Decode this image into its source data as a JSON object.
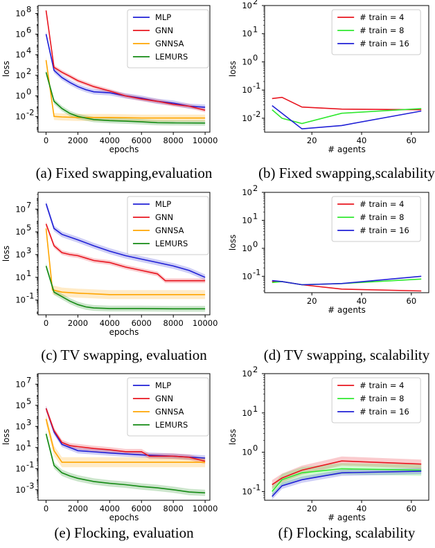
{
  "colors": {
    "MLP": "#1f1fd6",
    "GNN": "#e8141e",
    "GNNSA": "#ffa500",
    "LEMURS": "#138a13",
    "train4": "#e8141e",
    "train8": "#2ee82e",
    "train16": "#1f1fd6"
  },
  "chart_data": [
    {
      "id": "a",
      "type": "line",
      "caption": "(a) Fixed swapping,evaluation",
      "xlabel": "epochs",
      "ylabel": "loss",
      "ylog": true,
      "xlim": [
        -500,
        10300
      ],
      "ylim": [
        0.0003,
        600000000
      ],
      "xticks": [
        0,
        2000,
        4000,
        6000,
        8000,
        10000
      ],
      "yticks": [
        {
          "v": 0.01,
          "label": "10",
          "exp": "-2"
        },
        {
          "v": 1,
          "label": "10",
          "exp": "0"
        },
        {
          "v": 100,
          "label": "10",
          "exp": "2"
        },
        {
          "v": 10000,
          "label": "10",
          "exp": "4"
        },
        {
          "v": 1000000,
          "label": "10",
          "exp": "6"
        },
        {
          "v": 100000000,
          "label": "10",
          "exp": "8"
        }
      ],
      "legend": "top-right",
      "series": [
        {
          "name": "MLP",
          "color": "MLP",
          "x": [
            0,
            500,
            1000,
            1500,
            2000,
            2500,
            3000,
            4000,
            5000,
            6000,
            7000,
            8000,
            9000,
            10000
          ],
          "y": [
            1000000,
            300,
            60,
            20,
            8,
            4,
            2.5,
            2,
            1,
            0.6,
            0.3,
            0.2,
            0.1,
            0.08
          ],
          "band": 1.8
        },
        {
          "name": "GNN",
          "color": "GNN",
          "x": [
            0,
            500,
            1000,
            1500,
            2000,
            3000,
            4000,
            5000,
            6000,
            7000,
            8000,
            9000,
            10000
          ],
          "y": [
            200000000,
            600,
            200,
            80,
            30,
            8,
            3,
            1,
            0.5,
            0.3,
            0.15,
            0.1,
            0.04
          ],
          "band": 1.6
        },
        {
          "name": "GNNSA",
          "color": "GNNSA",
          "x": [
            0,
            500,
            1000,
            2000,
            4000,
            6000,
            8000,
            10000
          ],
          "y": [
            3000,
            0.01,
            0.009,
            0.008,
            0.008,
            0.007,
            0.007,
            0.007
          ],
          "band": 2.2
        },
        {
          "name": "LEMURS",
          "color": "LEMURS",
          "x": [
            0,
            500,
            1000,
            1500,
            2000,
            2500,
            3000,
            4000,
            5000,
            6000,
            7000,
            8000,
            10000
          ],
          "y": [
            200,
            0.3,
            0.06,
            0.02,
            0.01,
            0.007,
            0.005,
            0.004,
            0.0035,
            0.003,
            0.0025,
            0.0024,
            0.0023
          ],
          "band": 1.8
        }
      ]
    },
    {
      "id": "b",
      "type": "line",
      "caption": "(b) Fixed swapping,scalability",
      "xlabel": "# agents",
      "ylabel": "loss",
      "ylog": true,
      "xlim": [
        1,
        67
      ],
      "ylim": [
        0.0032,
        100
      ],
      "xticks": [
        20,
        40,
        60
      ],
      "yticks": [
        {
          "v": 0.01,
          "label": "10",
          "exp": "-2"
        },
        {
          "v": 0.1,
          "label": "10",
          "exp": "-1"
        },
        {
          "v": 1,
          "label": "10",
          "exp": "0"
        },
        {
          "v": 10,
          "label": "10",
          "exp": "1"
        },
        {
          "v": 100,
          "label": "10",
          "exp": "2"
        }
      ],
      "legend": "top-right",
      "series": [
        {
          "name": "# train = 4",
          "color": "train4",
          "x": [
            4,
            8,
            16,
            32,
            64
          ],
          "y": [
            0.05,
            0.055,
            0.025,
            0.021,
            0.02
          ]
        },
        {
          "name": "# train = 8",
          "color": "train8",
          "x": [
            4,
            8,
            16,
            32,
            64
          ],
          "y": [
            0.02,
            0.01,
            0.0065,
            0.015,
            0.022
          ]
        },
        {
          "name": "# train = 16",
          "color": "train16",
          "x": [
            4,
            8,
            16,
            32,
            64
          ],
          "y": [
            0.028,
            0.015,
            0.0042,
            0.0055,
            0.018
          ]
        }
      ]
    },
    {
      "id": "c",
      "type": "line",
      "caption": "(c) TV swapping, evaluation",
      "xlabel": "epochs",
      "ylabel": "loss",
      "ylog": true,
      "xlim": [
        -500,
        10300
      ],
      "ylim": [
        0.005,
        300000000
      ],
      "xticks": [
        0,
        2000,
        4000,
        6000,
        8000,
        10000
      ],
      "yticks": [
        {
          "v": 0.1,
          "label": "10",
          "exp": "-1"
        },
        {
          "v": 10,
          "label": "10",
          "exp": "1"
        },
        {
          "v": 1000,
          "label": "10",
          "exp": "3"
        },
        {
          "v": 100000,
          "label": "10",
          "exp": "5"
        },
        {
          "v": 10000000,
          "label": "10",
          "exp": "7"
        }
      ],
      "legend": "top-right",
      "series": [
        {
          "name": "MLP",
          "color": "MLP",
          "x": [
            0,
            500,
            1000,
            2000,
            3000,
            4000,
            5000,
            6000,
            7000,
            8000,
            9000,
            10000
          ],
          "y": [
            30000000,
            200000,
            60000,
            20000,
            6000,
            2000,
            800,
            400,
            200,
            100,
            40,
            10
          ],
          "band": 1.8
        },
        {
          "name": "GNN",
          "color": "GNN",
          "x": [
            0,
            500,
            1000,
            1500,
            2000,
            3000,
            4000,
            5000,
            6000,
            7000,
            7500,
            8000,
            10000
          ],
          "y": [
            500000,
            6000,
            1500,
            1000,
            800,
            300,
            200,
            80,
            40,
            20,
            5,
            5,
            5
          ],
          "band": 1.6
        },
        {
          "name": "GNNSA",
          "color": "GNNSA",
          "x": [
            0,
            400,
            1000,
            2000,
            3000,
            4000,
            6000,
            8000,
            10000
          ],
          "y": [
            200000,
            0.8,
            0.5,
            0.4,
            0.35,
            0.3,
            0.3,
            0.3,
            0.3
          ],
          "band": 2.5
        },
        {
          "name": "LEMURS",
          "color": "LEMURS",
          "x": [
            0,
            500,
            1000,
            1500,
            2000,
            2500,
            3000,
            4000,
            6000,
            8000,
            10000
          ],
          "y": [
            100,
            0.5,
            0.2,
            0.08,
            0.04,
            0.025,
            0.02,
            0.018,
            0.018,
            0.017,
            0.017
          ],
          "band": 1.8
        }
      ]
    },
    {
      "id": "d",
      "type": "line",
      "caption": "(d) TV swapping, scalability",
      "xlabel": "# agents",
      "ylabel": "loss",
      "ylog": true,
      "xlim": [
        1,
        67
      ],
      "ylim": [
        0.026,
        100
      ],
      "xticks": [
        20,
        40,
        60
      ],
      "yticks": [
        {
          "v": 0.1,
          "label": "10",
          "exp": "-1"
        },
        {
          "v": 1,
          "label": "10",
          "exp": "0"
        },
        {
          "v": 10,
          "label": "10",
          "exp": "1"
        },
        {
          "v": 100,
          "label": "10",
          "exp": "2"
        }
      ],
      "legend": "top-right",
      "series": [
        {
          "name": "# train = 4",
          "color": "train4",
          "x": [
            4,
            8,
            16,
            32,
            64
          ],
          "y": [
            0.065,
            0.065,
            0.05,
            0.035,
            0.03
          ]
        },
        {
          "name": "# train = 8",
          "color": "train8",
          "x": [
            4,
            8,
            16,
            32,
            64
          ],
          "y": [
            0.06,
            0.065,
            0.05,
            0.055,
            0.08
          ]
        },
        {
          "name": "# train = 16",
          "color": "train16",
          "x": [
            4,
            8,
            16,
            32,
            64
          ],
          "y": [
            0.07,
            0.065,
            0.05,
            0.055,
            0.1
          ]
        }
      ]
    },
    {
      "id": "e",
      "type": "line",
      "caption": "(e) Flocking, evaluation",
      "xlabel": "epochs",
      "ylabel": "loss",
      "ylog": true,
      "xlim": [
        -500,
        10300
      ],
      "ylim": [
        0.0001,
        100000000
      ],
      "xticks": [
        0,
        2000,
        4000,
        6000,
        8000,
        10000
      ],
      "yticks": [
        {
          "v": 0.001,
          "label": "10",
          "exp": "-3"
        },
        {
          "v": 0.1,
          "label": "10",
          "exp": "-1"
        },
        {
          "v": 10,
          "label": "10",
          "exp": "1"
        },
        {
          "v": 1000,
          "label": "10",
          "exp": "3"
        },
        {
          "v": 100000,
          "label": "10",
          "exp": "5"
        },
        {
          "v": 10000000,
          "label": "10",
          "exp": "7"
        }
      ],
      "legend": "top-right",
      "series": [
        {
          "name": "MLP",
          "color": "MLP",
          "x": [
            0,
            500,
            1000,
            2000,
            4000,
            6000,
            8000,
            10000
          ],
          "y": [
            50000,
            300,
            20,
            5,
            3,
            2,
            1.5,
            1
          ],
          "band": 1.8
        },
        {
          "name": "GNN",
          "color": "GNN",
          "x": [
            0,
            500,
            1000,
            1500,
            2000,
            3000,
            4000,
            5000,
            6000,
            6500,
            7000,
            8000,
            9000,
            10000
          ],
          "y": [
            50000,
            400,
            30,
            15,
            12,
            8,
            6,
            4,
            4,
            1.5,
            1.5,
            1.5,
            1.2,
            0.5
          ],
          "band": 1.8
        },
        {
          "name": "GNNSA",
          "color": "GNNSA",
          "x": [
            0,
            500,
            1000,
            2000,
            4000,
            6000,
            8000,
            10000
          ],
          "y": [
            5000,
            5,
            0.4,
            0.4,
            0.4,
            0.4,
            0.4,
            0.4
          ],
          "band": 3
        },
        {
          "name": "LEMURS",
          "color": "LEMURS",
          "x": [
            0,
            500,
            1000,
            1500,
            2000,
            3000,
            4000,
            5000,
            6000,
            7000,
            8000,
            9000,
            10000
          ],
          "y": [
            200,
            0.2,
            0.04,
            0.02,
            0.012,
            0.006,
            0.004,
            0.003,
            0.002,
            0.0015,
            0.001,
            0.0006,
            0.0005
          ],
          "band": 2
        }
      ]
    },
    {
      "id": "f",
      "type": "line",
      "caption": "(f) Flocking, scalability",
      "xlabel": "# agents",
      "ylabel": "loss",
      "ylog": true,
      "xlim": [
        1,
        67
      ],
      "ylim": [
        0.06,
        100
      ],
      "xticks": [
        20,
        40,
        60
      ],
      "yticks": [
        {
          "v": 0.1,
          "label": "10",
          "exp": "-1"
        },
        {
          "v": 1,
          "label": "10",
          "exp": "0"
        },
        {
          "v": 10,
          "label": "10",
          "exp": "1"
        },
        {
          "v": 100,
          "label": "10",
          "exp": "2"
        }
      ],
      "legend": "top-right",
      "series": [
        {
          "name": "# train = 4",
          "color": "train4",
          "x": [
            4,
            8,
            16,
            32,
            64
          ],
          "y": [
            0.15,
            0.22,
            0.35,
            0.6,
            0.5
          ],
          "band": 1.3
        },
        {
          "name": "# train = 8",
          "color": "train8",
          "x": [
            4,
            8,
            16,
            32,
            64
          ],
          "y": [
            0.1,
            0.2,
            0.3,
            0.38,
            0.35
          ],
          "band": 1.4
        },
        {
          "name": "# train = 16",
          "color": "train16",
          "x": [
            4,
            8,
            16,
            32,
            64
          ],
          "y": [
            0.075,
            0.14,
            0.2,
            0.3,
            0.33
          ],
          "band": 1.2
        }
      ]
    }
  ]
}
